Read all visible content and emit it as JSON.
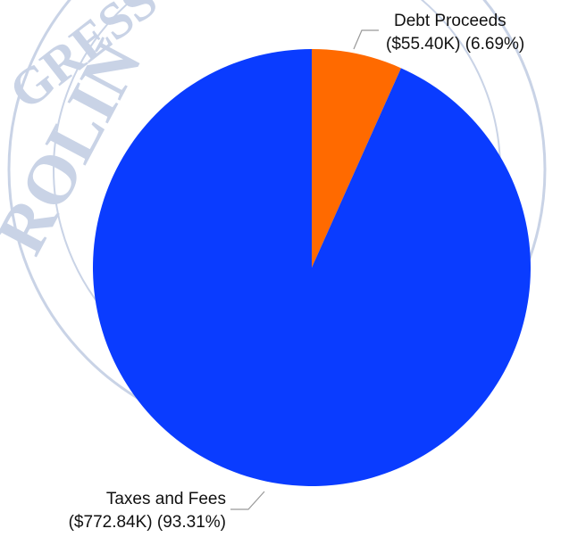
{
  "chart_data": {
    "type": "pie",
    "title": "",
    "slices": [
      {
        "label": "Debt Proceeds",
        "value_text": "($55.40K) (6.69%)",
        "value": 55.4,
        "percent": 6.69,
        "color": "#ff6a00"
      },
      {
        "label": "Taxes and Fees",
        "value_text": "($772.84K) (93.31%)",
        "value": 772.84,
        "percent": 93.31,
        "color": "#0a3cff"
      }
    ],
    "start_angle": "12 o'clock",
    "direction": "clockwise"
  },
  "watermark": {
    "texts": [
      "GRESS",
      "ROLIN"
    ],
    "color": "#c9d3e6"
  }
}
